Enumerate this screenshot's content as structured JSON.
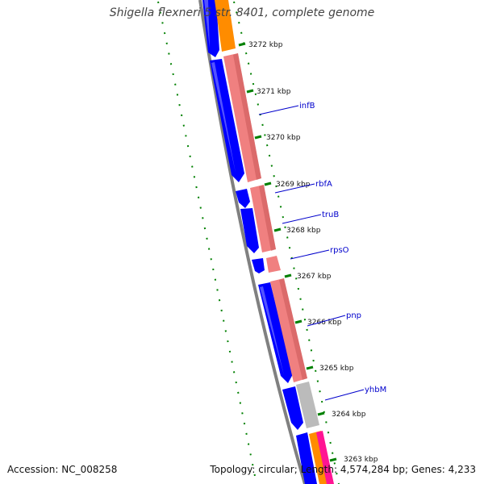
{
  "title": "Shigella flexneri 5 str. 8401, complete genome",
  "footer": {
    "accession_label": "Accession:",
    "accession": "NC_008258",
    "topology_label": "Topology:",
    "topology": "circular",
    "length_label": "Length:",
    "length": "4,574,284 bp",
    "genes_label": "Genes:",
    "genes": "4,233"
  },
  "scale_labels": [
    "3272 kbp",
    "3271 kbp",
    "3270 kbp",
    "3269 kbp",
    "3268 kbp",
    "3267 kbp",
    "3266 kbp",
    "3265 kbp",
    "3264 kbp",
    "3263 kbp"
  ],
  "gene_labels": [
    "infB",
    "rbfA",
    "truB",
    "rpsO",
    "pnp",
    "yhbM"
  ],
  "colors": {
    "cds": "#0000ff",
    "rrna": "#f08080",
    "orange_feature": "#ff8c00",
    "pink_feature": "#ff1493",
    "gray_feature": "#bbbbbb",
    "gc_skew": "#008000",
    "backbone": "#808080",
    "gene_label": "#0000cc"
  }
}
